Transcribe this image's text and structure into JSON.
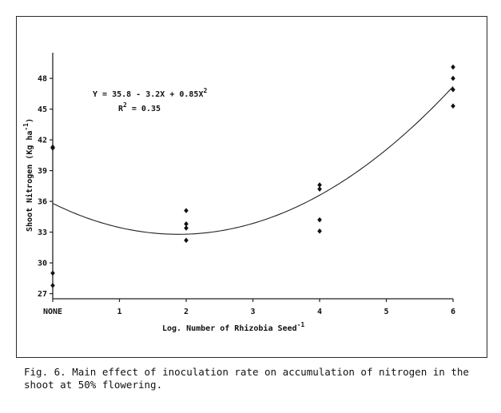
{
  "chart_data": {
    "type": "scatter",
    "xlabel": "Log. Number of Rhizobia Seed",
    "xlabel_sup": "-1",
    "ylabel": "Shoot Nitrogen (Kg ha",
    "ylabel_sup": "-1",
    "ylabel_end": ")",
    "x_ticks": [
      {
        "value": 0,
        "label": "NONE"
      },
      {
        "value": 1,
        "label": "1"
      },
      {
        "value": 2,
        "label": "2"
      },
      {
        "value": 3,
        "label": "3"
      },
      {
        "value": 4,
        "label": "4"
      },
      {
        "value": 5,
        "label": "5"
      },
      {
        "value": 6,
        "label": "6"
      }
    ],
    "y_ticks": [
      27,
      30,
      33,
      36,
      39,
      42,
      45,
      48
    ],
    "xlim": [
      0,
      6
    ],
    "ylim": [
      26.5,
      50.5
    ],
    "grid": false,
    "points": [
      {
        "x": 0,
        "y": 41.3
      },
      {
        "x": 0,
        "y": 41.2
      },
      {
        "x": 0,
        "y": 29.0
      },
      {
        "x": 0,
        "y": 27.8
      },
      {
        "x": 2,
        "y": 35.1
      },
      {
        "x": 2,
        "y": 33.8
      },
      {
        "x": 2,
        "y": 33.4
      },
      {
        "x": 2,
        "y": 32.2
      },
      {
        "x": 4,
        "y": 37.6
      },
      {
        "x": 4,
        "y": 37.2
      },
      {
        "x": 4,
        "y": 34.2
      },
      {
        "x": 4,
        "y": 33.1
      },
      {
        "x": 6,
        "y": 49.1
      },
      {
        "x": 6,
        "y": 48.0
      },
      {
        "x": 6,
        "y": 46.9
      },
      {
        "x": 6,
        "y": 45.3
      }
    ],
    "fit": {
      "intercept": 35.8,
      "linear": -3.2,
      "quadratic": 0.85
    },
    "equation_line1": "Y = 35.8 - 3.2X + 0.85X",
    "equation_line1_sup": "2",
    "equation_line2": "R",
    "equation_line2_sup": "2",
    "equation_line2_rest": " = 0.35"
  },
  "caption": "Fig. 6.  Main effect of inoculation rate on accumulation of nitrogen in the shoot at 50% flowering."
}
